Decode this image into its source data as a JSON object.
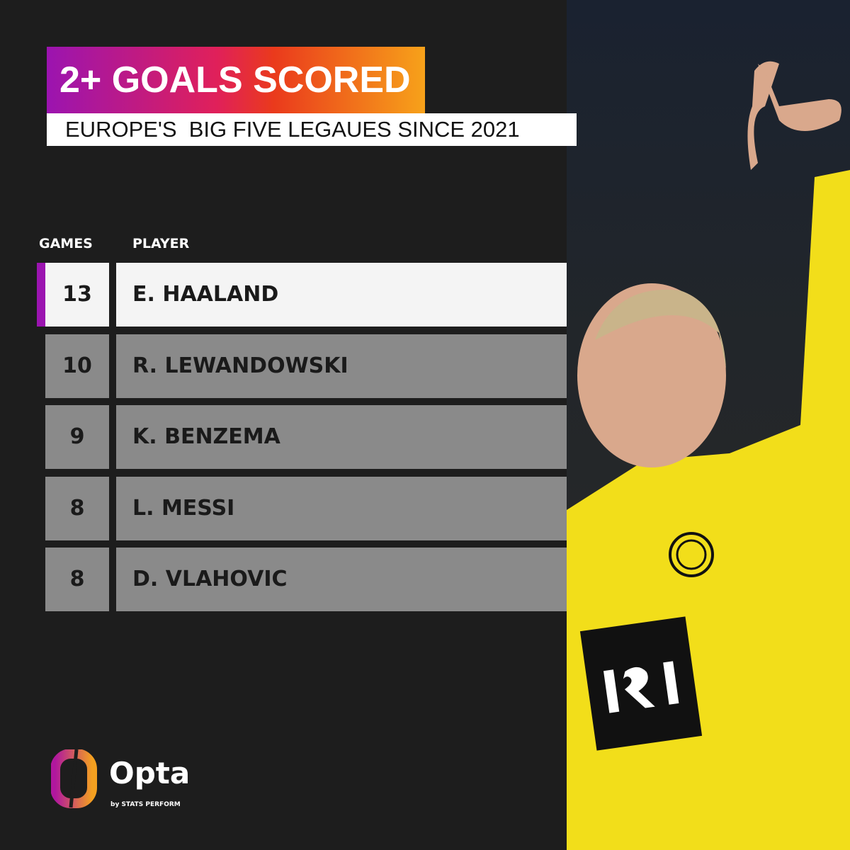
{
  "title": "2+ GOALS SCORED",
  "subtitle": "EUROPE'S  BIG FIVE LEGAUES SINCE 2021",
  "headers": {
    "games": "GAMES",
    "player": "PLAYER"
  },
  "rows": [
    {
      "games": "13",
      "player": "E. HAALAND"
    },
    {
      "games": "10",
      "player": "R. LEWANDOWSKI"
    },
    {
      "games": "9",
      "player": "K. BENZEMA"
    },
    {
      "games": "8",
      "player": "L. MESSI"
    },
    {
      "games": "8",
      "player": "D. VLAHOVIC"
    }
  ],
  "logo": {
    "name": "Opta",
    "tagline": "by STATS PERFORM"
  },
  "colors": {
    "accent": "#9b14b0",
    "gradient_start": "#9b14b0",
    "gradient_end": "#f7a21a",
    "row_bg": "#8a8a8a",
    "highlight_bg": "#f4f4f4"
  }
}
